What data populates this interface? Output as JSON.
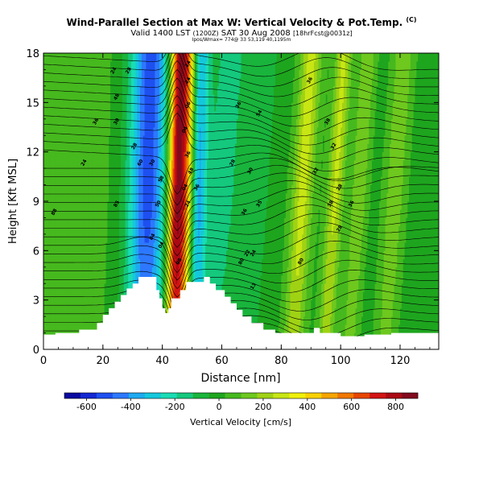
{
  "header": {
    "title": "Wind-Parallel Section at Max W: Vertical Velocity & Pot.Temp.",
    "title_mark": "(C)",
    "valid_main": "Valid 1400 LST",
    "valid_utc": "(1200Z)",
    "valid_date": "SAT 30 Aug 2008",
    "valid_run": "[18hrFcst@0031z]",
    "subtitle": "Ipos/Wmax= 774@ 33 53,119 40,1195m"
  },
  "colorbar": {
    "label": "Vertical Velocity [cm/s]",
    "colors": [
      "#0a0aa0",
      "#1428d2",
      "#1e50f0",
      "#2d78ff",
      "#1eaaf0",
      "#14c8dc",
      "#19dcb4",
      "#14c87d",
      "#19b43c",
      "#1ea51e",
      "#46b91e",
      "#6ec81e",
      "#a0d214",
      "#c8e614",
      "#f0f00a",
      "#fad200",
      "#f5a500",
      "#f07800",
      "#e64600",
      "#d21414",
      "#aa0a14",
      "#820a1e"
    ],
    "ticks": [
      "-600",
      "-400",
      "-200",
      "0",
      "200",
      "400",
      "600",
      "800"
    ]
  },
  "chart_data": {
    "type": "heatmap",
    "title": "Wind-Parallel Section at Max W: Vertical Velocity & Pot.Temp.",
    "xlabel": "Distance [nm]",
    "ylabel": "Height [Kft MSL]",
    "xlim": [
      0,
      133
    ],
    "ylim": [
      0,
      18
    ],
    "xticks": [
      0,
      20,
      40,
      60,
      80,
      100,
      120
    ],
    "yticks": [
      0,
      3,
      6,
      9,
      12,
      15,
      18
    ],
    "colorbar_range": [
      -700,
      900
    ],
    "terrain": [
      [
        0,
        0.9
      ],
      [
        4,
        0.9
      ],
      [
        4,
        1.0
      ],
      [
        12,
        1.0
      ],
      [
        12,
        1.2
      ],
      [
        18,
        1.2
      ],
      [
        18,
        1.6
      ],
      [
        20,
        1.6
      ],
      [
        20,
        2.1
      ],
      [
        22,
        2.1
      ],
      [
        22,
        2.5
      ],
      [
        24,
        2.5
      ],
      [
        24,
        2.9
      ],
      [
        26,
        2.9
      ],
      [
        26,
        3.3
      ],
      [
        28,
        3.3
      ],
      [
        28,
        3.7
      ],
      [
        30,
        3.7
      ],
      [
        30,
        4.0
      ],
      [
        32,
        4.0
      ],
      [
        32,
        4.4
      ],
      [
        38,
        4.4
      ],
      [
        38,
        3.6
      ],
      [
        39,
        3.6
      ],
      [
        39,
        3.1
      ],
      [
        40,
        3.1
      ],
      [
        40,
        2.5
      ],
      [
        41,
        2.5
      ],
      [
        41,
        2.2
      ],
      [
        42,
        2.2
      ],
      [
        42,
        2.5
      ],
      [
        43,
        2.5
      ],
      [
        43,
        3.1
      ],
      [
        46,
        3.1
      ],
      [
        46,
        3.6
      ],
      [
        48,
        3.6
      ],
      [
        48,
        4.1
      ],
      [
        54,
        4.1
      ],
      [
        54,
        4.4
      ],
      [
        56,
        4.4
      ],
      [
        56,
        4.0
      ],
      [
        58,
        4.0
      ],
      [
        58,
        3.6
      ],
      [
        61,
        3.6
      ],
      [
        61,
        3.2
      ],
      [
        63,
        3.2
      ],
      [
        63,
        2.8
      ],
      [
        65,
        2.8
      ],
      [
        65,
        2.4
      ],
      [
        67,
        2.4
      ],
      [
        67,
        2.0
      ],
      [
        70,
        2.0
      ],
      [
        70,
        1.6
      ],
      [
        74,
        1.6
      ],
      [
        74,
        1.2
      ],
      [
        78,
        1.2
      ],
      [
        78,
        1.0
      ],
      [
        91,
        1.0
      ],
      [
        91,
        1.3
      ],
      [
        93,
        1.3
      ],
      [
        93,
        1.0
      ],
      [
        100,
        1.0
      ],
      [
        100,
        0.8
      ],
      [
        108,
        0.8
      ],
      [
        108,
        0.9
      ],
      [
        117,
        0.9
      ],
      [
        117,
        1.0
      ],
      [
        133,
        1.0
      ]
    ],
    "w_field": [
      {
        "x": 45,
        "w": 880,
        "sigma": 2.2
      },
      {
        "x": 48.5,
        "w": 300,
        "sigma": 1.6
      },
      {
        "x": 35,
        "w": -520,
        "sigma": 4.5
      },
      {
        "x": 52,
        "w": -330,
        "sigma": 2.0
      },
      {
        "x": 60,
        "w": -150,
        "sigma": 5.0
      },
      {
        "x": 72,
        "w": -80,
        "sigma": 3.0
      },
      {
        "x": 87,
        "w": 280,
        "sigma": 2.5
      },
      {
        "x": 98,
        "w": 260,
        "sigma": 2.0
      },
      {
        "x": 106,
        "w": 170,
        "sigma": 2.0
      },
      {
        "x": 118,
        "w": 160,
        "sigma": 2.5
      },
      {
        "x": 10,
        "w": 100,
        "sigma": 8.0
      }
    ],
    "theta_labels": [
      {
        "x": 24,
        "y": 16.9,
        "text": "24"
      },
      {
        "x": 29,
        "y": 16.9,
        "text": "28"
      },
      {
        "x": 25,
        "y": 15.3,
        "text": "48"
      },
      {
        "x": 18,
        "y": 13.8,
        "text": "36"
      },
      {
        "x": 25,
        "y": 13.8,
        "text": "30"
      },
      {
        "x": 31,
        "y": 12.3,
        "text": "28"
      },
      {
        "x": 14,
        "y": 11.3,
        "text": "24"
      },
      {
        "x": 33,
        "y": 11.3,
        "text": "60"
      },
      {
        "x": 37,
        "y": 11.3,
        "text": "30"
      },
      {
        "x": 40,
        "y": 10.3,
        "text": "58"
      },
      {
        "x": 39,
        "y": 8.8,
        "text": "50"
      },
      {
        "x": 37,
        "y": 6.8,
        "text": "84"
      },
      {
        "x": 4,
        "y": 8.3,
        "text": "88"
      },
      {
        "x": 25,
        "y": 8.8,
        "text": "85"
      },
      {
        "x": 40,
        "y": 6.3,
        "text": "04"
      },
      {
        "x": 46,
        "y": 5.3,
        "text": "08"
      },
      {
        "x": 49,
        "y": 17.3,
        "text": "24"
      },
      {
        "x": 49,
        "y": 16.3,
        "text": "24"
      },
      {
        "x": 49,
        "y": 14.8,
        "text": "06"
      },
      {
        "x": 48,
        "y": 13.3,
        "text": "04"
      },
      {
        "x": 49,
        "y": 11.8,
        "text": "36"
      },
      {
        "x": 50,
        "y": 10.8,
        "text": "48"
      },
      {
        "x": 48,
        "y": 9.8,
        "text": "04"
      },
      {
        "x": 49,
        "y": 8.8,
        "text": "24"
      },
      {
        "x": 52,
        "y": 9.8,
        "text": "36"
      },
      {
        "x": 66,
        "y": 14.8,
        "text": "36"
      },
      {
        "x": 73,
        "y": 14.3,
        "text": "54"
      },
      {
        "x": 64,
        "y": 11.3,
        "text": "28"
      },
      {
        "x": 70,
        "y": 10.8,
        "text": "30"
      },
      {
        "x": 68,
        "y": 8.3,
        "text": "36"
      },
      {
        "x": 73,
        "y": 8.8,
        "text": "35"
      },
      {
        "x": 90,
        "y": 16.3,
        "text": "36"
      },
      {
        "x": 96,
        "y": 13.8,
        "text": "38"
      },
      {
        "x": 98,
        "y": 12.3,
        "text": "32"
      },
      {
        "x": 92,
        "y": 10.8,
        "text": "32"
      },
      {
        "x": 100,
        "y": 9.8,
        "text": "28"
      },
      {
        "x": 97,
        "y": 8.8,
        "text": "38"
      },
      {
        "x": 104,
        "y": 8.8,
        "text": "36"
      },
      {
        "x": 100,
        "y": 7.3,
        "text": "28"
      },
      {
        "x": 69,
        "y": 5.8,
        "text": "22"
      },
      {
        "x": 71,
        "y": 5.8,
        "text": "24"
      },
      {
        "x": 67,
        "y": 5.3,
        "text": "80"
      },
      {
        "x": 87,
        "y": 5.3,
        "text": "80"
      },
      {
        "x": 71,
        "y": 3.8,
        "text": "13"
      }
    ]
  }
}
